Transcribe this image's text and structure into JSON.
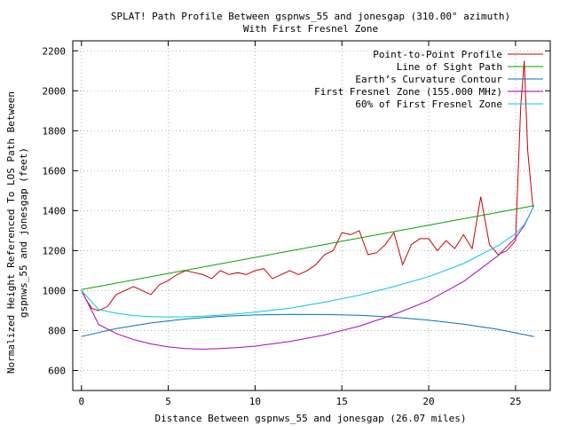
{
  "chart_data": {
    "type": "line",
    "title_line1": "SPLAT! Path Profile Between gspnws_55 and jonesgap (310.00° azimuth)",
    "title_line2": "With First Fresnel Zone",
    "xlabel": "Distance Between gspnws_55 and jonesgap (26.07 miles)",
    "ylabel_line1": "Normalized Height Referenced To LOS Path Between",
    "ylabel_line2": "gspnws_55 and jonesgap (feet)",
    "xlim": [
      -0.5,
      27
    ],
    "ylim": [
      500,
      2250
    ],
    "xticks": [
      0,
      5,
      10,
      15,
      20,
      25
    ],
    "yticks": [
      600,
      800,
      1000,
      1200,
      1400,
      1600,
      1800,
      2000,
      2200
    ],
    "grid": true,
    "legend_position": "top-right",
    "series": [
      {
        "name": "Point-to-Point Profile",
        "color": "#cc0000",
        "x": [
          0,
          0.3,
          0.6,
          1.0,
          1.5,
          2.0,
          2.5,
          3.0,
          3.5,
          4.0,
          4.5,
          5.0,
          5.5,
          6.0,
          6.5,
          7.0,
          7.5,
          8.0,
          8.5,
          9.0,
          9.5,
          10.0,
          10.5,
          11.0,
          11.5,
          12.0,
          12.5,
          13.0,
          13.5,
          14.0,
          14.5,
          15.0,
          15.5,
          16.0,
          16.5,
          17.0,
          17.5,
          18.0,
          18.5,
          19.0,
          19.5,
          20.0,
          20.5,
          21.0,
          21.5,
          22.0,
          22.5,
          23.0,
          23.5,
          24.0,
          24.5,
          25.0,
          25.3,
          25.5,
          25.7,
          26.0
        ],
        "y": [
          1000,
          950,
          910,
          900,
          920,
          980,
          1000,
          1020,
          1000,
          980,
          1030,
          1050,
          1080,
          1100,
          1090,
          1080,
          1060,
          1100,
          1080,
          1090,
          1080,
          1100,
          1110,
          1060,
          1080,
          1100,
          1080,
          1100,
          1130,
          1180,
          1200,
          1290,
          1280,
          1300,
          1180,
          1190,
          1230,
          1290,
          1130,
          1230,
          1260,
          1260,
          1200,
          1250,
          1210,
          1280,
          1210,
          1470,
          1230,
          1180,
          1200,
          1250,
          1920,
          2150,
          1700,
          1420
        ]
      },
      {
        "name": "Line of Sight Path",
        "color": "#00a000",
        "x": [
          0,
          26.07
        ],
        "y": [
          1005,
          1425
        ]
      },
      {
        "name": "Earth’s Curvature Contour",
        "color": "#0070c0",
        "x": [
          0,
          2,
          4,
          6,
          8,
          10,
          12,
          14,
          16,
          18,
          20,
          22,
          24,
          26.07
        ],
        "y": [
          770,
          810,
          838,
          858,
          871,
          878,
          881,
          880,
          876,
          867,
          852,
          832,
          806,
          770
        ]
      },
      {
        "name": "First Fresnel Zone (155.000 MHz)",
        "color": "#b000c0",
        "x": [
          0,
          1,
          2,
          3,
          4,
          5,
          6,
          7,
          8,
          9,
          10,
          12,
          14,
          16,
          18,
          20,
          22,
          24,
          25,
          25.5,
          26.07
        ],
        "y": [
          1000,
          830,
          785,
          755,
          733,
          718,
          710,
          707,
          710,
          715,
          722,
          745,
          778,
          822,
          880,
          950,
          1045,
          1175,
          1265,
          1325,
          1425
        ]
      },
      {
        "name": "60% of First Fresnel Zone",
        "color": "#00c8e0",
        "x": [
          0,
          1,
          2,
          3,
          4,
          5,
          6,
          7,
          8,
          9,
          10,
          12,
          14,
          16,
          18,
          20,
          22,
          24,
          25,
          25.5,
          26.07
        ],
        "y": [
          1000,
          905,
          887,
          875,
          870,
          868,
          869,
          872,
          877,
          884,
          892,
          912,
          942,
          977,
          1020,
          1070,
          1135,
          1225,
          1285,
          1330,
          1425
        ]
      }
    ]
  }
}
